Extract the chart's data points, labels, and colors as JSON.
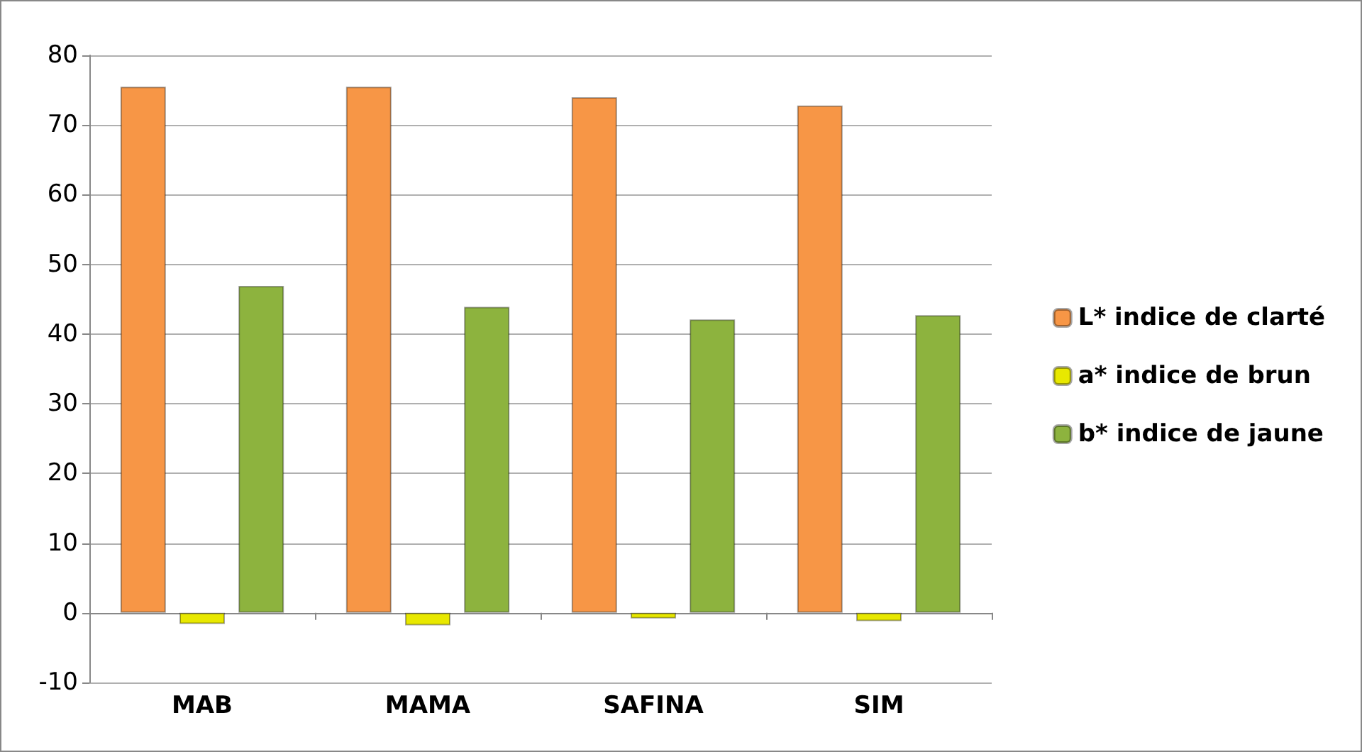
{
  "chart_data": {
    "type": "bar",
    "categories": [
      "MAB",
      "MAMA",
      "SAFINA",
      "SIM"
    ],
    "series": [
      {
        "name": "L* indice de clarté",
        "color": "#f79646",
        "values": [
          75.5,
          75.5,
          74.0,
          72.8
        ]
      },
      {
        "name": "a* indice de brun",
        "color": "#e8e800",
        "values": [
          -1.6,
          -1.8,
          -0.8,
          -1.2
        ]
      },
      {
        "name": "b* indice de jaune",
        "color": "#8db33e",
        "values": [
          46.9,
          43.9,
          42.1,
          42.7
        ]
      }
    ],
    "ylim": [
      -10,
      80
    ],
    "yticks": [
      -10,
      0,
      10,
      20,
      30,
      40,
      50,
      60,
      70,
      80
    ],
    "grid": "y",
    "legend": "right"
  }
}
